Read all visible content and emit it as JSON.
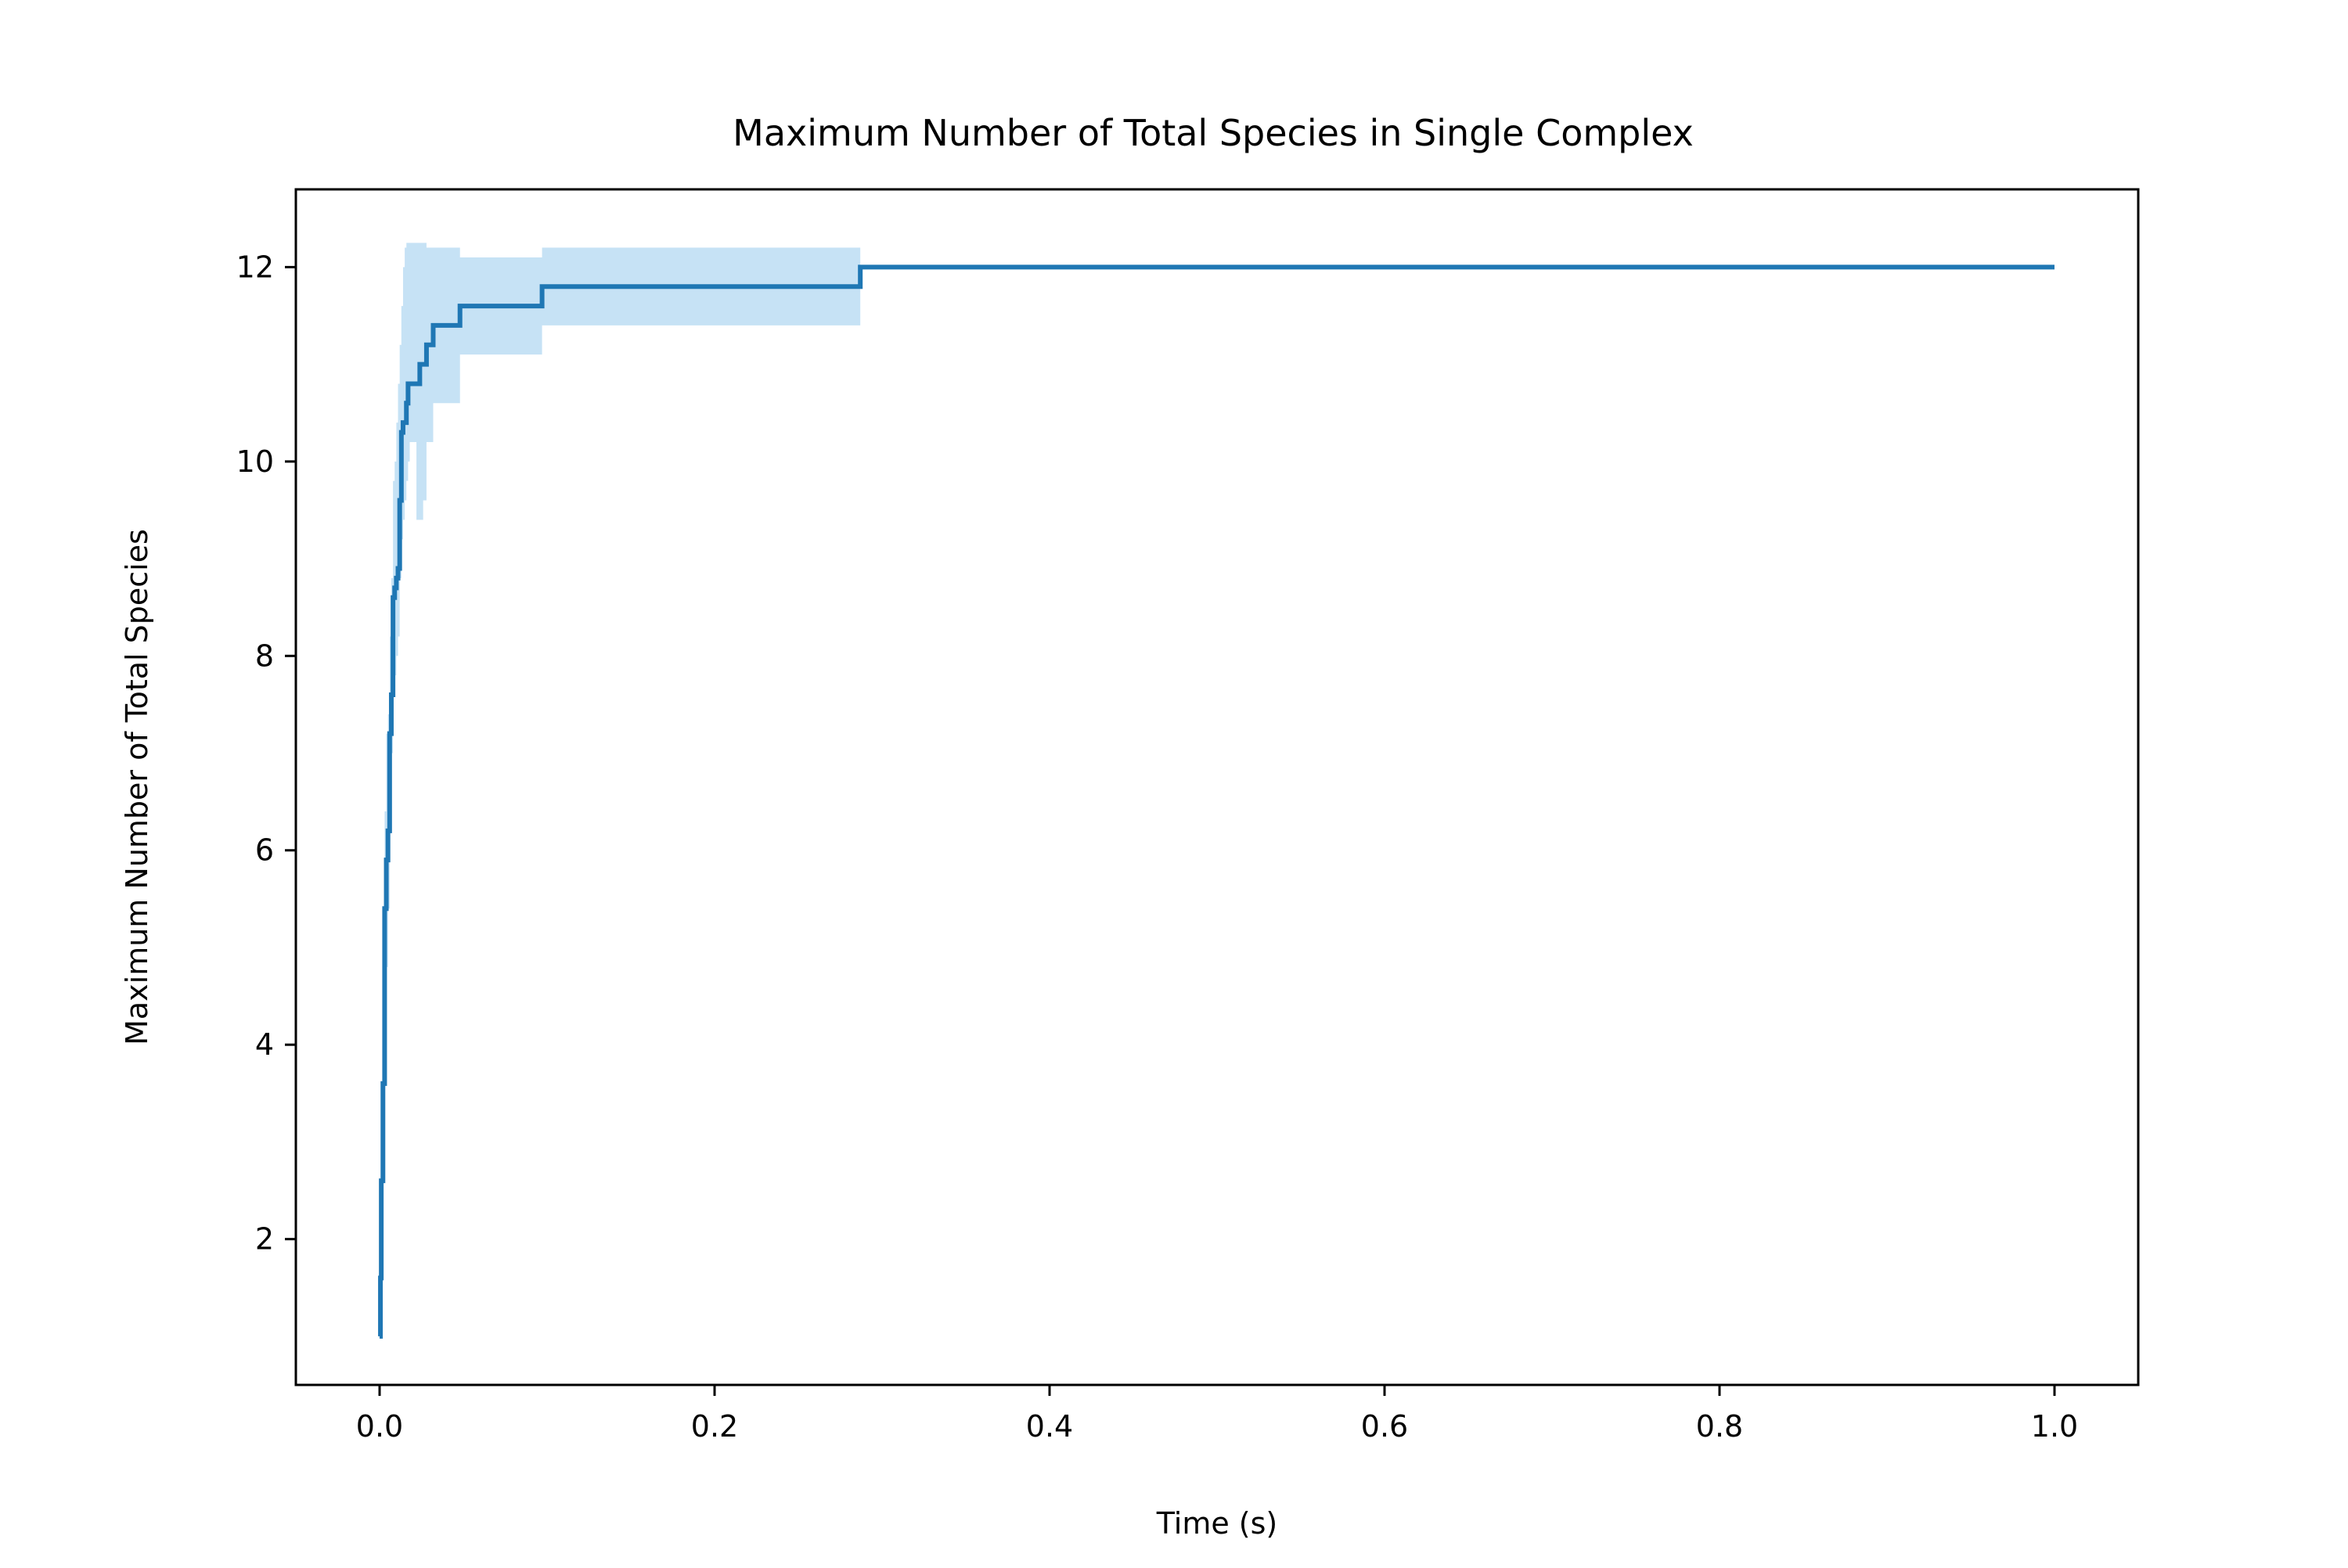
{
  "chart_data": {
    "type": "line",
    "title": "Maximum Number of Total Species in Single Complex",
    "xlabel": "Time (s)",
    "ylabel": "Maximum Number of Total Species",
    "xlim": [
      -0.05,
      1.05
    ],
    "ylim": [
      0.5,
      12.8
    ],
    "xticks": [
      0.0,
      0.2,
      0.4,
      0.6,
      0.8,
      1.0
    ],
    "xtick_labels": [
      "0.0",
      "0.2",
      "0.4",
      "0.6",
      "0.8",
      "1.0"
    ],
    "yticks": [
      2,
      4,
      6,
      8,
      10,
      12
    ],
    "ytick_labels": [
      "2",
      "4",
      "6",
      "8",
      "10",
      "12"
    ],
    "grid": false,
    "legend": "none",
    "line_color": "#1f77b4",
    "band_color": "#c6e2f5",
    "series": [
      {
        "x": [
          0.0,
          0.0005,
          0.001,
          0.002,
          0.003,
          0.004,
          0.005,
          0.006,
          0.007,
          0.008,
          0.009,
          0.01,
          0.011,
          0.012,
          0.013,
          0.014,
          0.015,
          0.016,
          0.017,
          0.018,
          0.019,
          0.02,
          0.022,
          0.024,
          0.026,
          0.028,
          0.03,
          0.032,
          0.035,
          0.04,
          0.045,
          0.048,
          0.06,
          0.08,
          0.095,
          0.097,
          0.12,
          0.2,
          0.285,
          0.287,
          1.0
        ],
        "values": [
          1.0,
          1.6,
          2.6,
          3.6,
          5.4,
          5.9,
          6.2,
          7.2,
          7.6,
          8.6,
          8.7,
          8.8,
          8.9,
          9.6,
          10.3,
          10.4,
          10.4,
          10.6,
          10.8,
          10.8,
          10.8,
          10.8,
          10.8,
          11.0,
          11.0,
          11.2,
          11.2,
          11.4,
          11.4,
          11.4,
          11.4,
          11.6,
          11.6,
          11.6,
          11.6,
          11.8,
          11.8,
          11.8,
          11.8,
          12.0,
          12.0
        ],
        "lower": [
          1.0,
          1.6,
          2.6,
          3.6,
          4.0,
          4.8,
          5.4,
          6.6,
          7.0,
          7.6,
          7.8,
          8.0,
          8.2,
          8.8,
          9.2,
          9.4,
          9.6,
          9.8,
          10.0,
          10.2,
          10.2,
          10.2,
          9.4,
          9.4,
          9.6,
          10.2,
          10.2,
          10.6,
          10.6,
          10.6,
          10.6,
          11.1,
          11.1,
          11.1,
          11.1,
          11.4,
          11.4,
          11.4,
          11.4,
          12.0,
          12.0
        ],
        "upper": [
          1.0,
          1.6,
          2.6,
          3.6,
          6.4,
          7.2,
          7.4,
          8.2,
          8.8,
          9.8,
          10.0,
          10.4,
          10.8,
          11.2,
          11.6,
          12.0,
          12.2,
          12.25,
          12.25,
          12.25,
          12.25,
          12.25,
          12.25,
          12.25,
          12.25,
          12.2,
          12.2,
          12.2,
          12.2,
          12.2,
          12.2,
          12.1,
          12.1,
          12.1,
          12.1,
          12.2,
          12.2,
          12.2,
          12.2,
          12.0,
          12.0
        ]
      }
    ]
  }
}
